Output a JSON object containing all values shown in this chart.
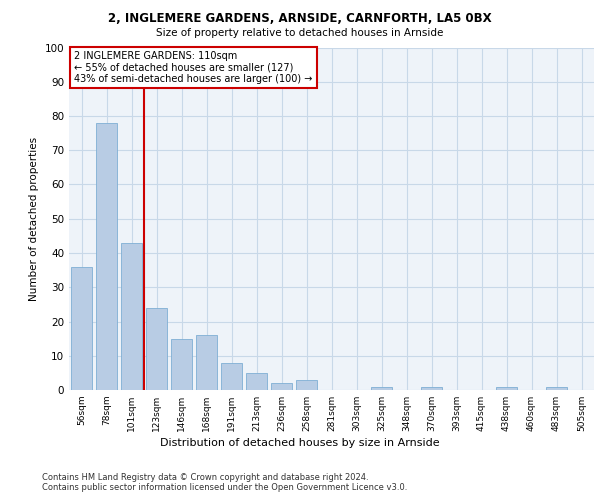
{
  "title1": "2, INGLEMERE GARDENS, ARNSIDE, CARNFORTH, LA5 0BX",
  "title2": "Size of property relative to detached houses in Arnside",
  "xlabel": "Distribution of detached houses by size in Arnside",
  "ylabel": "Number of detached properties",
  "categories": [
    "56sqm",
    "78sqm",
    "101sqm",
    "123sqm",
    "146sqm",
    "168sqm",
    "191sqm",
    "213sqm",
    "236sqm",
    "258sqm",
    "281sqm",
    "303sqm",
    "325sqm",
    "348sqm",
    "370sqm",
    "393sqm",
    "415sqm",
    "438sqm",
    "460sqm",
    "483sqm",
    "505sqm"
  ],
  "values": [
    36,
    78,
    43,
    24,
    15,
    16,
    8,
    5,
    2,
    3,
    0,
    0,
    1,
    0,
    1,
    0,
    0,
    1,
    0,
    1,
    0
  ],
  "bar_color": "#b8cce4",
  "bar_edge_color": "#7fafd4",
  "grid_color": "#c8d8e8",
  "background_color": "#eef3f9",
  "vline_x": 2.5,
  "vline_color": "#cc0000",
  "annotation_text": "2 INGLEMERE GARDENS: 110sqm\n← 55% of detached houses are smaller (127)\n43% of semi-detached houses are larger (100) →",
  "annotation_box_color": "white",
  "annotation_box_edge": "#cc0000",
  "footer_text": "Contains HM Land Registry data © Crown copyright and database right 2024.\nContains public sector information licensed under the Open Government Licence v3.0.",
  "ylim": [
    0,
    100
  ],
  "yticks": [
    0,
    10,
    20,
    30,
    40,
    50,
    60,
    70,
    80,
    90,
    100
  ]
}
